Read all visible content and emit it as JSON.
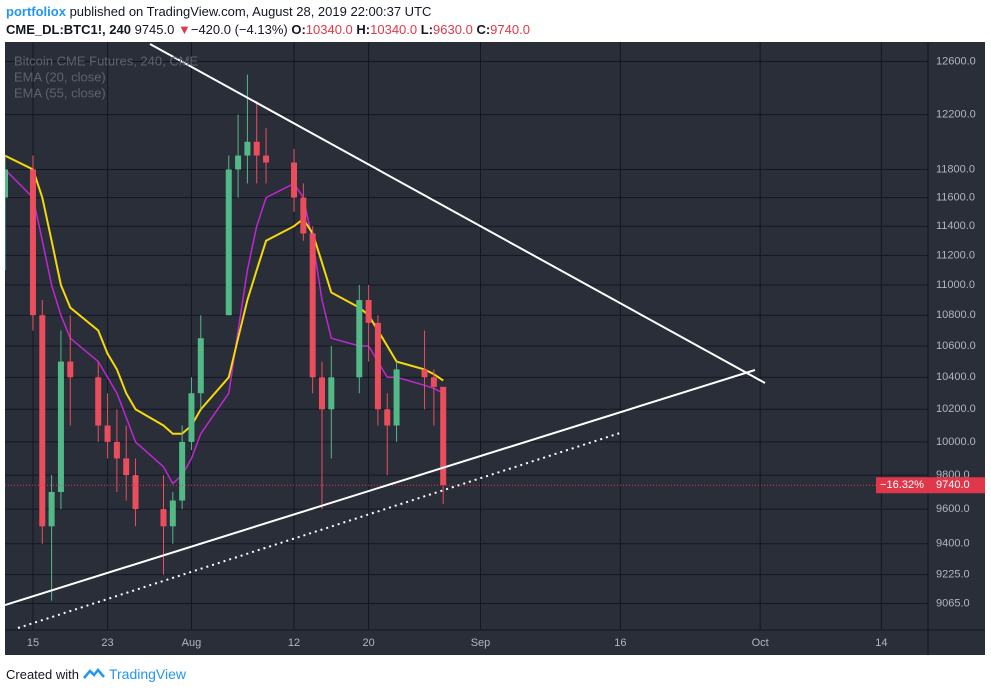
{
  "header": {
    "author": "portfoliox",
    "published": "published on TradingView.com, August 28, 2019 22:00:37 UTC",
    "symbol": "CME_DL:BTC1!, 240",
    "price": "9745.0",
    "arrow": "▼",
    "change": "−420.0 (−4.13%)",
    "o_label": "O:",
    "o": "10340.0",
    "h_label": "H:",
    "h": "10340.0",
    "l_label": "L:",
    "l": "9630.0",
    "c_label": "C:",
    "c": "9740.0"
  },
  "footer": {
    "created": "Created with",
    "brand": "TradingView"
  },
  "chart_data": {
    "type": "candlestick",
    "title": "Bitcoin CME Futures, 240, CME",
    "x": [
      "2019-07-12",
      "2019-07-15",
      "2019-07-16",
      "2019-07-17",
      "2019-07-18",
      "2019-07-19",
      "2019-07-22",
      "2019-07-23",
      "2019-07-24",
      "2019-07-25",
      "2019-07-26",
      "2019-07-29",
      "2019-07-30",
      "2019-07-31",
      "2019-08-01",
      "2019-08-02",
      "2019-08-05",
      "2019-08-06",
      "2019-08-07",
      "2019-08-08",
      "2019-08-09",
      "2019-08-12",
      "2019-08-13",
      "2019-08-14",
      "2019-08-15",
      "2019-08-16",
      "2019-08-19",
      "2019-08-20",
      "2019-08-21",
      "2019-08-22",
      "2019-08-23",
      "2019-08-26",
      "2019-08-27",
      "2019-08-28"
    ],
    "open": [
      11600,
      11800,
      10800,
      9500,
      9700,
      10500,
      10400,
      10100,
      10000,
      9900,
      9800,
      9600,
      9500,
      9650,
      10000,
      10300,
      10800,
      11800,
      11900,
      12000,
      11900,
      11850,
      11600,
      11350,
      10400,
      10200,
      10400,
      10900,
      10750,
      10200,
      10100,
      10450,
      10400,
      10340
    ],
    "high": [
      11900,
      11900,
      10900,
      9800,
      10700,
      10800,
      10500,
      10300,
      10200,
      10100,
      9900,
      9800,
      9700,
      10100,
      10400,
      10800,
      11900,
      12200,
      12500,
      12300,
      12100,
      11950,
      11700,
      11400,
      10500,
      10600,
      11000,
      11000,
      10800,
      10300,
      10500,
      10700,
      10450,
      10340
    ],
    "low": [
      11100,
      10700,
      9400,
      9080,
      9600,
      10100,
      10000,
      9900,
      9700,
      9650,
      9500,
      9225,
      9400,
      9600,
      9950,
      10200,
      10800,
      11600,
      11700,
      11700,
      11700,
      11500,
      11300,
      10300,
      9600,
      9900,
      10300,
      10500,
      10100,
      9800,
      10000,
      10200,
      10100,
      9630
    ],
    "close": [
      11800,
      10800,
      9500,
      9700,
      10500,
      10400,
      10100,
      10000,
      9900,
      9800,
      9600,
      9500,
      9650,
      10000,
      10300,
      10650,
      11800,
      11900,
      12000,
      11900,
      11850,
      11600,
      11350,
      10400,
      10200,
      10400,
      10900,
      10750,
      10200,
      10100,
      10450,
      10400,
      10340,
      9740
    ],
    "up_color": "#53b987",
    "down_color": "#eb4d5c",
    "series": [
      {
        "name": "EMA (20, close)",
        "color": "#c026d3",
        "values": [
          11800,
          11600,
          11300,
          11000,
          10800,
          10650,
          10500,
          10400,
          10300,
          10150,
          10000,
          9850,
          9750,
          9800,
          9900,
          10050,
          10300,
          10700,
          11100,
          11400,
          11600,
          11700,
          11600,
          11300,
          10900,
          10650,
          10600,
          10600,
          10500,
          10400,
          10400,
          10350,
          10330,
          10300
        ]
      },
      {
        "name": "EMA (55, close)",
        "color": "#f5d90a",
        "values": [
          11900,
          11800,
          11600,
          11300,
          11000,
          10850,
          10700,
          10550,
          10450,
          10300,
          10200,
          10100,
          10050,
          10050,
          10100,
          10200,
          10400,
          10650,
          10900,
          11100,
          11300,
          11400,
          11450,
          11350,
          11150,
          10950,
          10850,
          10800,
          10700,
          10600,
          10500,
          10450,
          10420,
          10380
        ]
      }
    ],
    "log": true,
    "grid": true,
    "ylim": [
      8920,
      12750
    ],
    "yticks": [
      {
        "value": 9065,
        "label": "9065.0"
      },
      {
        "value": 9225,
        "label": "9225.0"
      },
      {
        "value": 9400,
        "label": "9400.0"
      },
      {
        "value": 9600,
        "label": "9600.0"
      },
      {
        "value": 9800,
        "label": "9800.0"
      },
      {
        "value": 10000,
        "label": "10000.0"
      },
      {
        "value": 10200,
        "label": "10200.0"
      },
      {
        "value": 10400,
        "label": "10400.0"
      },
      {
        "value": 10600,
        "label": "10600.0"
      },
      {
        "value": 10800,
        "label": "10800.0"
      },
      {
        "value": 11000,
        "label": "11000.0"
      },
      {
        "value": 11200,
        "label": "11200.0"
      },
      {
        "value": 11400,
        "label": "11400.0"
      },
      {
        "value": 11600,
        "label": "11600.0"
      },
      {
        "value": 11800,
        "label": "11800.0"
      },
      {
        "value": 12200,
        "label": "12200.0"
      },
      {
        "value": 12600,
        "label": "12600.0"
      }
    ],
    "xlim": [
      "2019-07-12",
      "2019-10-19"
    ],
    "xticks": [
      {
        "value": "2019-07-15",
        "label": "15"
      },
      {
        "value": "2019-07-23",
        "label": "23"
      },
      {
        "value": "2019-08-01",
        "label": "Aug"
      },
      {
        "value": "2019-08-12",
        "label": "12"
      },
      {
        "value": "2019-08-20",
        "label": "20"
      },
      {
        "value": "2019-09-01",
        "label": "Sep"
      },
      {
        "value": "2019-09-16",
        "label": "16"
      },
      {
        "value": "2019-10-01",
        "label": "Oct"
      },
      {
        "value": "2019-10-14",
        "label": "14"
      }
    ],
    "last_price": {
      "value": 9740,
      "label": "9740.0"
    },
    "last_change": "−16.32%",
    "last_color": "#e0384a"
  }
}
